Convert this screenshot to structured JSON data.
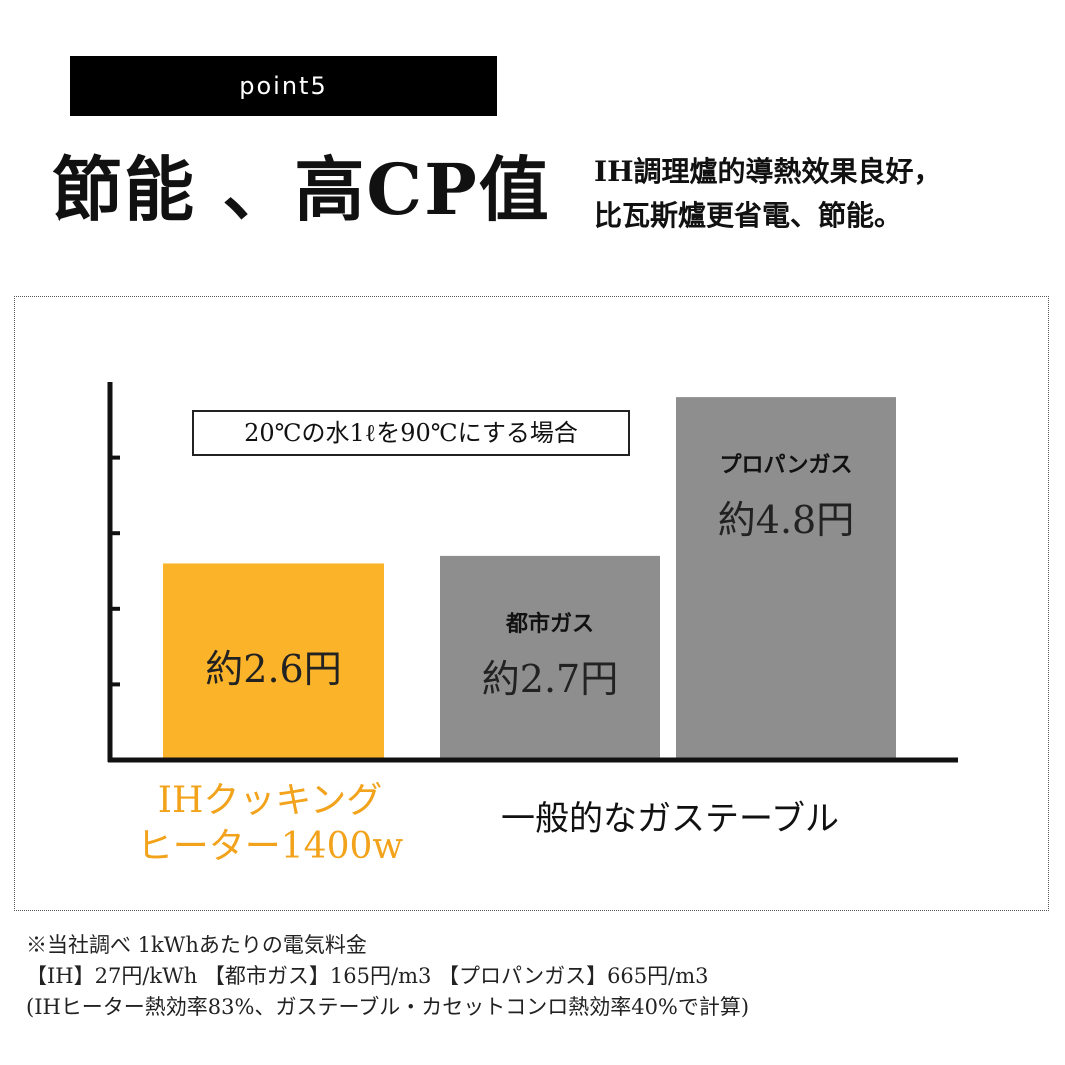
{
  "badge": "point5",
  "headline": "節能 、高CP值",
  "subcopy": {
    "line1": "IH調理爐的導熱效果良好，",
    "line2": "比瓦斯爐更省電、節能。"
  },
  "chart_data": {
    "type": "bar",
    "condition": "20℃の水1ℓを90℃にする場合",
    "categories": [
      "IHクッキングヒーター1400w",
      "都市ガス",
      "プロパンガス"
    ],
    "values": [
      2.6,
      2.7,
      4.8
    ],
    "value_labels": [
      "約2.6円",
      "約2.7円",
      "約4.8円"
    ],
    "bar_names": [
      "",
      "都市ガス",
      "プロパンガス"
    ],
    "colors": [
      "#fbb42a",
      "#8e8e8e",
      "#8e8e8e"
    ],
    "ylim": [
      0,
      5
    ],
    "ytick_count": 5,
    "group_labels": {
      "ih_line1": "IHクッキング",
      "ih_line2": "ヒーター1400w",
      "gas": "一般的なガステーブル"
    },
    "ih_label_color": "#f2a31b",
    "grid": false
  },
  "footnote": {
    "line1": "※当社調べ 1kWhあたりの電気料金",
    "line2": "【IH】27円/kWh 【都市ガス】165円/m3 【プロパンガス】665円/m3",
    "line3": "(IHヒーター熱効率83%、ガステーブル・カセットコンロ熱効率40%で計算)"
  }
}
